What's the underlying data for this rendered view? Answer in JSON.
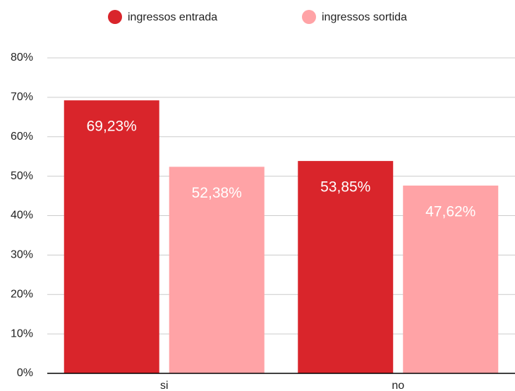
{
  "chart_data": {
    "type": "bar",
    "categories": [
      "si",
      "no"
    ],
    "series": [
      {
        "name": "ingressos entrada",
        "color": "#d9252b",
        "values": [
          69.23,
          53.85
        ],
        "value_labels": [
          "69,23%",
          "53,85%"
        ]
      },
      {
        "name": "ingressos sortida",
        "color": "#ffa3a6",
        "values": [
          52.38,
          47.62
        ],
        "value_labels": [
          "52,38%",
          "47,62%"
        ]
      }
    ],
    "ylim": [
      0,
      80
    ],
    "yticks": [
      {
        "value": 0,
        "label": "0%"
      },
      {
        "value": 10,
        "label": "10%"
      },
      {
        "value": 20,
        "label": "20%"
      },
      {
        "value": 30,
        "label": "30%"
      },
      {
        "value": 40,
        "label": "40%"
      },
      {
        "value": 50,
        "label": "50%"
      },
      {
        "value": 60,
        "label": "60%"
      },
      {
        "value": 70,
        "label": "70%"
      },
      {
        "value": 80,
        "label": "80%"
      }
    ],
    "grid": true,
    "legend": "top"
  }
}
